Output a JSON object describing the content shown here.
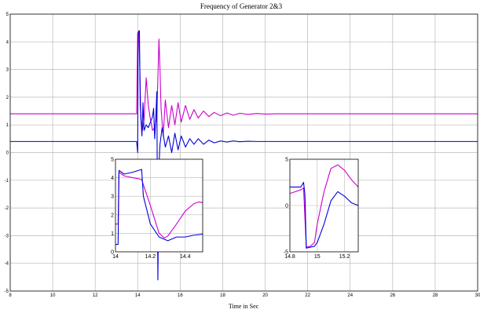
{
  "chart_data": {
    "type": "line",
    "title": "Frequency of Generator 2&3",
    "xlabel": "Time in Sec",
    "ylabel": "",
    "xlim": [
      8,
      30
    ],
    "ylim": [
      -5,
      5
    ],
    "grid": true,
    "x_ticks": [
      "8",
      "10",
      "12",
      "14",
      "16",
      "18",
      "20",
      "22",
      "24",
      "26",
      "28",
      "30"
    ],
    "y_ticks": [
      "-5",
      "-4",
      "-3",
      "-2",
      "-1",
      "0",
      "1",
      "2",
      "3",
      "4",
      "5"
    ],
    "colors": {
      "magenta": "#cc00cc",
      "blue": "#0000dd",
      "grid": "#b8b8b8"
    },
    "series": [
      {
        "color": "#cc00cc",
        "x": [
          8,
          13.95,
          14.0,
          14.05,
          14.1,
          14.15,
          14.22,
          14.3,
          14.4,
          14.5,
          14.6,
          14.7,
          14.8,
          14.9,
          15.0,
          15.05,
          15.1,
          15.2,
          15.3,
          15.45,
          15.6,
          15.75,
          15.9,
          16.05,
          16.25,
          16.45,
          16.65,
          16.85,
          17.1,
          17.35,
          17.6,
          17.9,
          18.2,
          18.5,
          18.8,
          19.2,
          19.6,
          20.0,
          20.5,
          21.0,
          22.0,
          30
        ],
        "y": [
          1.4,
          1.4,
          4.3,
          4.4,
          3.0,
          1.2,
          0.8,
          1.2,
          2.7,
          1.7,
          1.2,
          0.8,
          0.9,
          1.3,
          4.1,
          3.0,
          1.6,
          0.6,
          1.9,
          0.9,
          1.7,
          1.0,
          1.8,
          1.1,
          1.7,
          1.2,
          1.55,
          1.25,
          1.5,
          1.3,
          1.45,
          1.33,
          1.43,
          1.35,
          1.42,
          1.38,
          1.41,
          1.39,
          1.4,
          1.4,
          1.4,
          1.4
        ]
      },
      {
        "color": "#0000dd",
        "x": [
          8,
          13.95,
          14.0,
          14.02,
          14.08,
          14.12,
          14.2,
          14.25,
          14.3,
          14.4,
          14.5,
          14.6,
          14.7,
          14.75,
          14.8,
          14.85,
          14.9,
          14.95,
          15.0,
          15.05,
          15.15,
          15.3,
          15.45,
          15.6,
          15.75,
          15.9,
          16.05,
          16.25,
          16.45,
          16.65,
          16.85,
          17.1,
          17.35,
          17.6,
          17.9,
          18.2,
          18.5,
          18.8,
          19.2,
          19.6,
          20.0,
          20.5,
          21.0,
          30
        ],
        "y": [
          0.4,
          0.4,
          0.0,
          4.3,
          4.4,
          1.7,
          0.6,
          1.8,
          0.8,
          1.0,
          0.9,
          1.1,
          1.3,
          1.6,
          0.5,
          1.2,
          2.2,
          -4.6,
          -0.5,
          0.3,
          0.9,
          0.2,
          0.6,
          0.0,
          0.7,
          0.1,
          0.6,
          0.2,
          0.5,
          0.3,
          0.5,
          0.3,
          0.45,
          0.35,
          0.42,
          0.38,
          0.42,
          0.39,
          0.41,
          0.4,
          0.4,
          0.4,
          0.4,
          0.4
        ]
      }
    ],
    "insets": [
      {
        "xlim": [
          14.0,
          14.5
        ],
        "ylim": [
          0,
          5
        ],
        "x_ticks": [
          "14",
          "14.2",
          "14.4"
        ],
        "x_tick_values": [
          14.0,
          14.2,
          14.4
        ],
        "y_ticks": [
          "0",
          "1",
          "2",
          "3",
          "4",
          "5"
        ],
        "y_tick_values": [
          0,
          1,
          2,
          3,
          4,
          5
        ],
        "grid": true,
        "series": [
          {
            "color": "#cc00cc",
            "x": [
              14.0,
              14.015,
              14.02,
              14.05,
              14.1,
              14.13,
              14.15,
              14.2,
              14.25,
              14.28,
              14.3,
              14.35,
              14.4,
              14.45,
              14.48,
              14.5
            ],
            "y": [
              1.5,
              1.5,
              4.3,
              4.1,
              4.0,
              3.95,
              3.9,
              2.5,
              1.0,
              0.75,
              0.85,
              1.5,
              2.2,
              2.6,
              2.7,
              2.65
            ]
          },
          {
            "color": "#0000dd",
            "x": [
              14.0,
              14.015,
              14.02,
              14.05,
              14.1,
              14.15,
              14.16,
              14.2,
              14.25,
              14.3,
              14.35,
              14.4,
              14.45,
              14.5
            ],
            "y": [
              0.4,
              0.4,
              4.4,
              4.2,
              4.3,
              4.45,
              3.0,
              1.5,
              0.8,
              0.6,
              0.8,
              0.8,
              0.9,
              0.95
            ]
          }
        ]
      },
      {
        "xlim": [
          14.8,
          15.3
        ],
        "ylim": [
          -5,
          5
        ],
        "x_ticks": [
          "14.8",
          "15",
          "15.2"
        ],
        "x_tick_values": [
          14.8,
          15.0,
          15.2
        ],
        "y_ticks": [
          "-5",
          "0",
          "5"
        ],
        "y_tick_values": [
          -5,
          0,
          5
        ],
        "grid": true,
        "series": [
          {
            "color": "#cc00cc",
            "x": [
              14.8,
              14.88,
              14.9,
              14.92,
              14.95,
              14.98,
              15.0,
              15.05,
              15.1,
              15.15,
              15.2,
              15.25,
              15.3
            ],
            "y": [
              1.3,
              1.7,
              1.9,
              -4.5,
              -4.4,
              -4.0,
              -2.0,
              1.5,
              4.0,
              4.4,
              3.8,
              2.8,
              2.0
            ]
          },
          {
            "color": "#0000dd",
            "x": [
              14.8,
              14.88,
              14.9,
              14.91,
              14.92,
              14.95,
              14.98,
              15.0,
              15.05,
              15.1,
              15.15,
              15.2,
              15.25,
              15.3
            ],
            "y": [
              2.0,
              2.0,
              2.5,
              1.2,
              -4.6,
              -4.5,
              -4.4,
              -4.0,
              -2.0,
              0.5,
              1.5,
              1.0,
              0.3,
              0.0
            ]
          }
        ]
      }
    ]
  }
}
